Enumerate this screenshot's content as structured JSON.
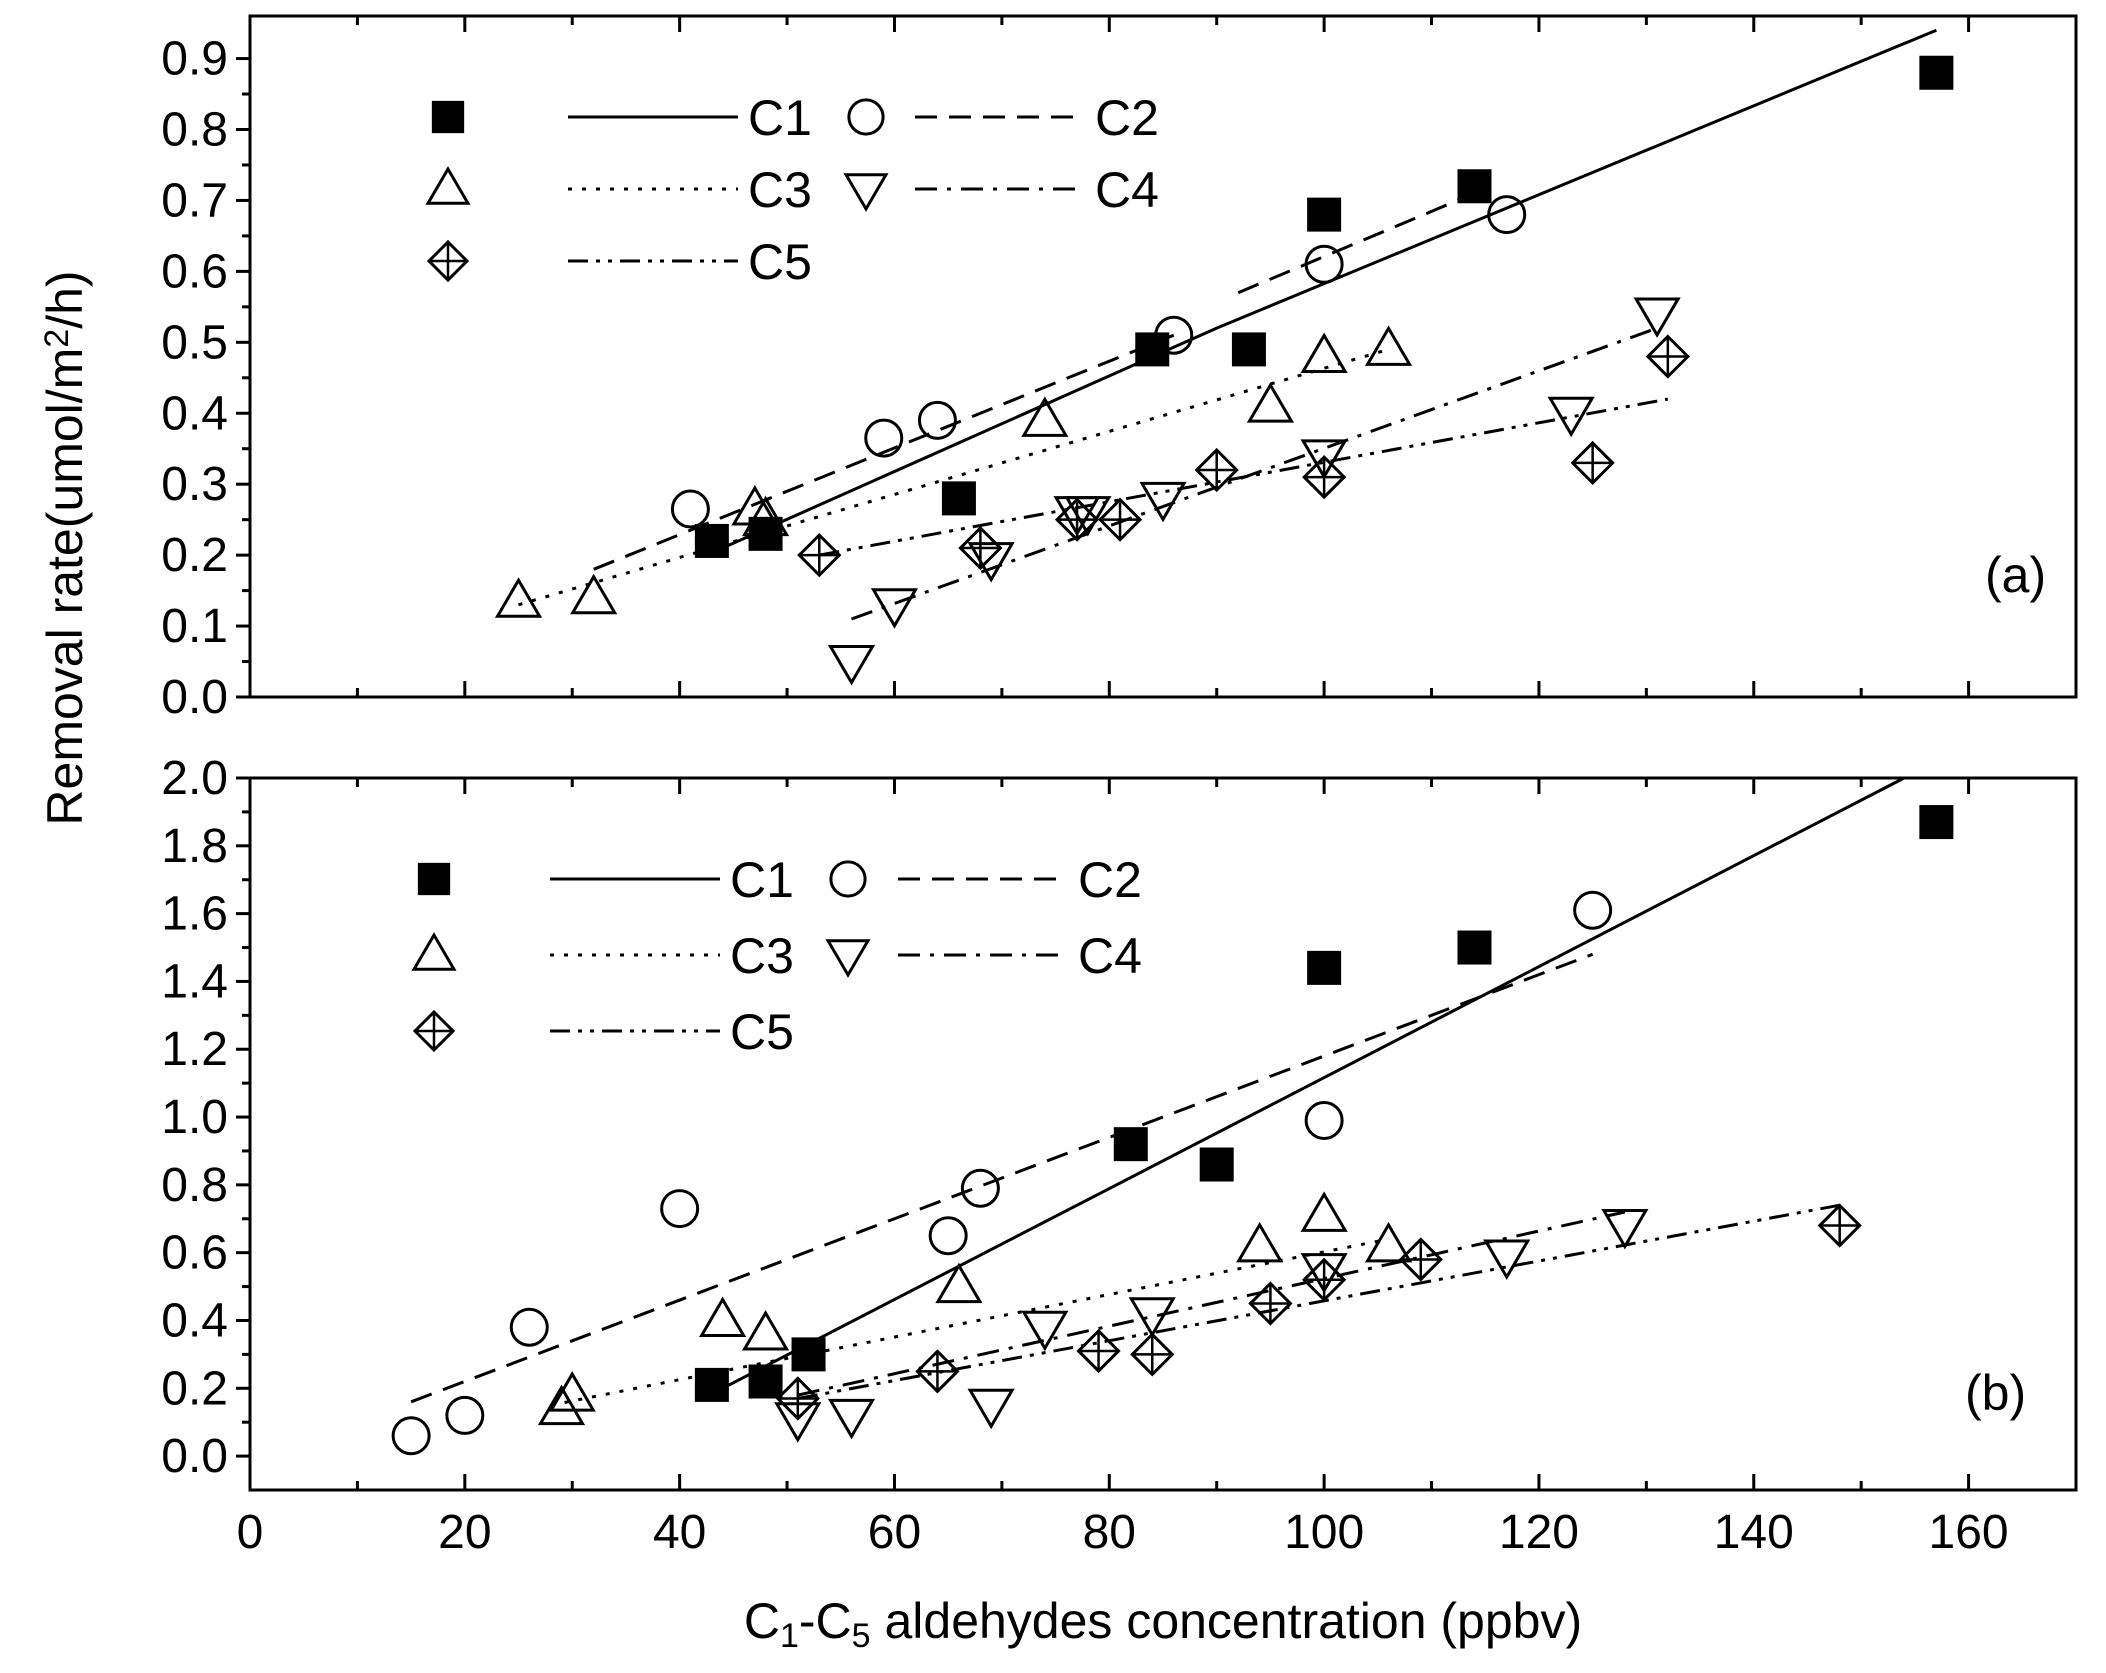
{
  "chart_data": {
    "type": "scatter",
    "x_axis": {
      "label_parts": [
        "C",
        "1",
        "-C",
        "5",
        " aldehydes concentration (ppbv)"
      ],
      "range": [
        0,
        170
      ],
      "ticks": [
        0,
        20,
        40,
        60,
        80,
        100,
        120,
        140,
        160
      ],
      "tick_labels": [
        "0",
        "20",
        "40",
        "60",
        "80",
        "100",
        "120",
        "140",
        "160"
      ]
    },
    "y_axis_label_parts": [
      "Removal rate(umol/m",
      "2",
      "/h)"
    ],
    "series_styles": {
      "C1": {
        "marker": "filled-square",
        "line": "solid"
      },
      "C2": {
        "marker": "open-circle",
        "line": "dashed"
      },
      "C3": {
        "marker": "triangle-up",
        "line": "dotted"
      },
      "C4": {
        "marker": "triangle-down",
        "line": "dash-dot"
      },
      "C5": {
        "marker": "crossed-diamond",
        "line": "dash-dot-dot"
      }
    },
    "legend_labels": [
      "C1",
      "C2",
      "C3",
      "C4",
      "C5"
    ],
    "panels": [
      {
        "id": "a",
        "tag": "(a)",
        "y_range": [
          0,
          0.96
        ],
        "y_ticks": [
          0,
          0.1,
          0.2,
          0.3,
          0.4,
          0.5,
          0.6,
          0.7,
          0.8,
          0.9
        ],
        "y_tick_labels": [
          "0.0",
          "0.1",
          "0.2",
          "0.3",
          "0.4",
          "0.5",
          "0.6",
          "0.7",
          "0.8",
          "0.9"
        ],
        "series": [
          {
            "name": "C1",
            "points": [
              [
                43,
                0.22
              ],
              [
                48,
                0.23
              ],
              [
                66,
                0.28
              ],
              [
                84,
                0.49
              ],
              [
                93,
                0.49
              ],
              [
                100,
                0.68
              ],
              [
                114,
                0.72
              ],
              [
                157,
                0.88
              ]
            ],
            "fit": [
              [
                44,
                0.21
              ],
              [
                90,
                0.52
              ],
              [
                157,
                0.94
              ]
            ]
          },
          {
            "name": "C2",
            "points": [
              [
                41,
                0.265
              ],
              [
                59,
                0.365
              ],
              [
                64,
                0.39
              ],
              [
                86,
                0.51
              ],
              [
                100,
                0.61
              ],
              [
                117,
                0.68
              ]
            ],
            "fit_segments": [
              [
                [
                  32,
                  0.18
                ],
                [
                  86,
                  0.51
                ]
              ],
              [
                [
                  92,
                  0.57
                ],
                [
                  114,
                  0.71
                ]
              ]
            ]
          },
          {
            "name": "C3",
            "points": [
              [
                25,
                0.135
              ],
              [
                32,
                0.14
              ],
              [
                47,
                0.265
              ],
              [
                48,
                0.25
              ],
              [
                74,
                0.39
              ],
              [
                95,
                0.41
              ],
              [
                100,
                0.48
              ],
              [
                106,
                0.49
              ]
            ],
            "fit": [
              [
                25,
                0.13
              ],
              [
                106,
                0.49
              ]
            ]
          },
          {
            "name": "C4",
            "points": [
              [
                56,
                0.05
              ],
              [
                60,
                0.13
              ],
              [
                69,
                0.195
              ],
              [
                77,
                0.26
              ],
              [
                78,
                0.26
              ],
              [
                85,
                0.28
              ],
              [
                100,
                0.34
              ],
              [
                123,
                0.4
              ],
              [
                131,
                0.54
              ]
            ],
            "fit": [
              [
                56,
                0.11
              ],
              [
                131,
                0.52
              ]
            ]
          },
          {
            "name": "C5",
            "points": [
              [
                53,
                0.2
              ],
              [
                68,
                0.21
              ],
              [
                77,
                0.25
              ],
              [
                81,
                0.25
              ],
              [
                90,
                0.32
              ],
              [
                100,
                0.31
              ],
              [
                125,
                0.33
              ],
              [
                132,
                0.48
              ]
            ],
            "fit": [
              [
                53,
                0.2
              ],
              [
                132,
                0.42
              ]
            ]
          }
        ]
      },
      {
        "id": "b",
        "tag": "(b)",
        "y_range": [
          -0.1,
          2.0
        ],
        "y_ticks": [
          0,
          0.2,
          0.4,
          0.6,
          0.8,
          1.0,
          1.2,
          1.4,
          1.6,
          1.8,
          2.0
        ],
        "y_tick_labels": [
          "0.0",
          "0.2",
          "0.4",
          "0.6",
          "0.8",
          "1.0",
          "1.2",
          "1.4",
          "1.6",
          "1.8",
          "2.0"
        ],
        "series": [
          {
            "name": "C1",
            "points": [
              [
                43,
                0.21
              ],
              [
                48,
                0.22
              ],
              [
                52,
                0.3
              ],
              [
                82,
                0.92
              ],
              [
                90,
                0.86
              ],
              [
                100,
                1.44
              ],
              [
                114,
                1.5
              ],
              [
                157,
                1.87
              ]
            ],
            "fit": [
              [
                44,
                0.2
              ],
              [
                154,
                2.0
              ]
            ]
          },
          {
            "name": "C2",
            "points": [
              [
                15,
                0.06
              ],
              [
                20,
                0.12
              ],
              [
                26,
                0.38
              ],
              [
                40,
                0.73
              ],
              [
                65,
                0.65
              ],
              [
                68,
                0.79
              ],
              [
                100,
                0.99
              ],
              [
                125,
                1.61
              ]
            ],
            "fit": [
              [
                15,
                0.16
              ],
              [
                125,
                1.48
              ]
            ]
          },
          {
            "name": "C3",
            "points": [
              [
                29,
                0.14
              ],
              [
                30,
                0.18
              ],
              [
                44,
                0.4
              ],
              [
                48,
                0.36
              ],
              [
                66,
                0.5
              ],
              [
                94,
                0.62
              ],
              [
                100,
                0.71
              ],
              [
                106,
                0.62
              ]
            ],
            "fit": [
              [
                28,
                0.15
              ],
              [
                106,
                0.64
              ]
            ]
          },
          {
            "name": "C4",
            "points": [
              [
                51,
                0.11
              ],
              [
                56,
                0.12
              ],
              [
                69,
                0.15
              ],
              [
                74,
                0.38
              ],
              [
                84,
                0.42
              ],
              [
                100,
                0.55
              ],
              [
                117,
                0.59
              ],
              [
                128,
                0.68
              ]
            ],
            "fit": [
              [
                51,
                0.18
              ],
              [
                128,
                0.72
              ]
            ]
          },
          {
            "name": "C5",
            "points": [
              [
                51,
                0.17
              ],
              [
                64,
                0.25
              ],
              [
                79,
                0.31
              ],
              [
                84,
                0.3
              ],
              [
                95,
                0.45
              ],
              [
                100,
                0.52
              ],
              [
                109,
                0.58
              ],
              [
                148,
                0.68
              ]
            ],
            "fit": [
              [
                51,
                0.17
              ],
              [
                148,
                0.74
              ]
            ]
          }
        ]
      }
    ]
  }
}
